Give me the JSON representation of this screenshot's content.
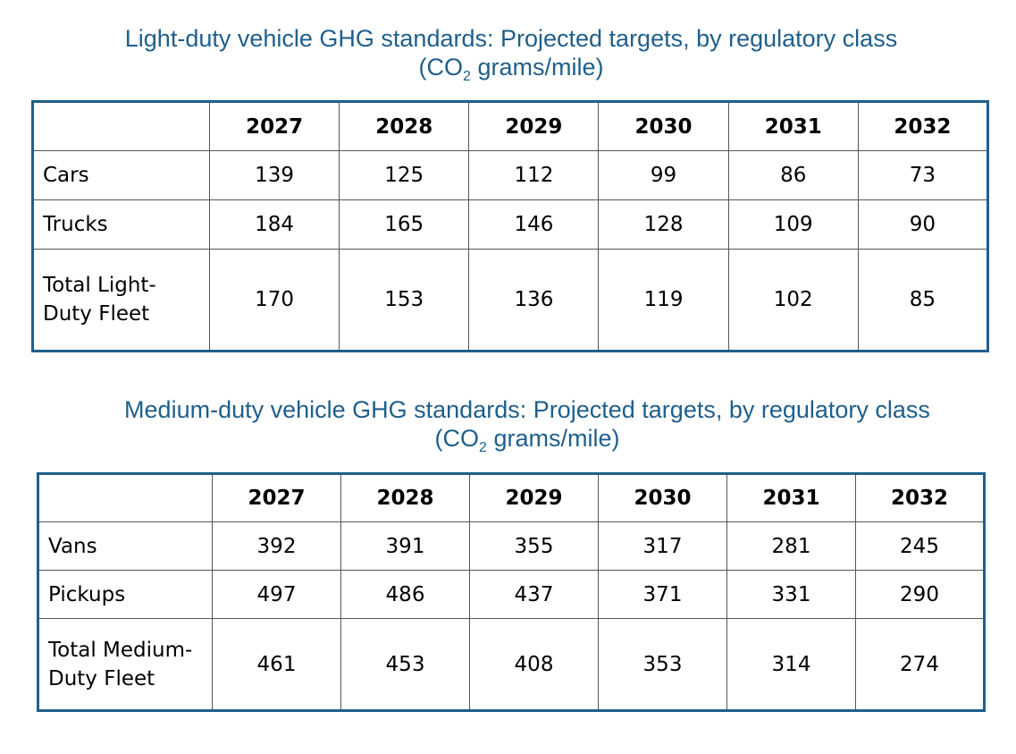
{
  "chart_data": [
    {
      "type": "table",
      "title": "Light-duty vehicle GHG standards: Projected targets, by regulatory class",
      "subtitle": {
        "pre": "(CO",
        "sub": "2",
        "post": " grams/mile)"
      },
      "columns": [
        "",
        "2027",
        "2028",
        "2029",
        "2030",
        "2031",
        "2032"
      ],
      "rows": [
        {
          "label": [
            "Cars"
          ],
          "values": [
            "139",
            "125",
            "112",
            "99",
            "86",
            "73"
          ]
        },
        {
          "label": [
            "Trucks"
          ],
          "values": [
            "184",
            "165",
            "146",
            "128",
            "109",
            "90"
          ]
        },
        {
          "label": [
            "Total Light-",
            "Duty Fleet"
          ],
          "values": [
            "170",
            "153",
            "136",
            "119",
            "102",
            "85"
          ]
        }
      ]
    },
    {
      "type": "table",
      "title": "Medium-duty vehicle GHG standards: Projected targets, by regulatory class",
      "subtitle": {
        "pre": "(CO",
        "sub": "2",
        "post": " grams/mile)"
      },
      "columns": [
        "",
        "2027",
        "2028",
        "2029",
        "2030",
        "2031",
        "2032"
      ],
      "rows": [
        {
          "label": [
            "Vans"
          ],
          "values": [
            "392",
            "391",
            "355",
            "317",
            "281",
            "245"
          ]
        },
        {
          "label": [
            "Pickups"
          ],
          "values": [
            "497",
            "486",
            "437",
            "371",
            "331",
            "290"
          ]
        },
        {
          "label": [
            "Total Medium-",
            "Duty Fleet"
          ],
          "values": [
            "461",
            "453",
            "408",
            "353",
            "314",
            "274"
          ]
        }
      ]
    }
  ]
}
